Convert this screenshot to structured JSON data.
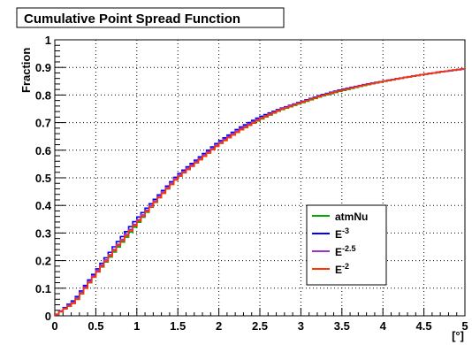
{
  "chart_data": {
    "type": "line",
    "title": "Cumulative Point Spread Function",
    "ylabel": "Fraction",
    "xlabel": "[°]",
    "xlim": [
      0,
      5
    ],
    "ylim": [
      0,
      1
    ],
    "grid": true,
    "legend_placement": "lower-right",
    "x_ticks": [
      "0",
      "0.5",
      "1",
      "1.5",
      "2",
      "2.5",
      "3",
      "3.5",
      "4",
      "4.5",
      "5"
    ],
    "y_ticks": [
      "0",
      "0.1",
      "0.2",
      "0.3",
      "0.4",
      "0.5",
      "0.6",
      "0.7",
      "0.8",
      "0.9",
      "1"
    ],
    "x": [
      0,
      0.25,
      0.5,
      0.75,
      1,
      1.25,
      1.5,
      1.75,
      2,
      2.25,
      2.5,
      2.75,
      3,
      3.25,
      3.5,
      3.75,
      4,
      4.25,
      4.5,
      4.75,
      5
    ],
    "series": [
      {
        "name": "atmNu",
        "label_main": "atmNu",
        "label_sup": "",
        "color": "#00aa00",
        "values": [
          0,
          0.05,
          0.15,
          0.24,
          0.33,
          0.42,
          0.5,
          0.56,
          0.62,
          0.67,
          0.71,
          0.745,
          0.77,
          0.795,
          0.815,
          0.833,
          0.848,
          0.862,
          0.874,
          0.885,
          0.895
        ]
      },
      {
        "name": "E^-3",
        "label_main": "E",
        "label_sup": "-3",
        "color": "#0000ff",
        "values": [
          0,
          0.06,
          0.16,
          0.26,
          0.35,
          0.43,
          0.51,
          0.57,
          0.63,
          0.68,
          0.72,
          0.75,
          0.775,
          0.8,
          0.82,
          0.836,
          0.85,
          0.863,
          0.875,
          0.886,
          0.895
        ]
      },
      {
        "name": "E^-2.5",
        "label_main": "E",
        "label_sup": "-2.5",
        "color": "#9933cc",
        "values": [
          0,
          0.055,
          0.155,
          0.25,
          0.34,
          0.425,
          0.505,
          0.565,
          0.625,
          0.675,
          0.715,
          0.748,
          0.773,
          0.798,
          0.818,
          0.835,
          0.849,
          0.862,
          0.874,
          0.885,
          0.894
        ]
      },
      {
        "name": "E^-2",
        "label_main": "E",
        "label_sup": "-2",
        "color": "#ff3300",
        "values": [
          0,
          0.05,
          0.15,
          0.245,
          0.335,
          0.42,
          0.5,
          0.56,
          0.62,
          0.67,
          0.712,
          0.746,
          0.772,
          0.797,
          0.817,
          0.834,
          0.849,
          0.862,
          0.875,
          0.886,
          0.896
        ]
      }
    ]
  }
}
